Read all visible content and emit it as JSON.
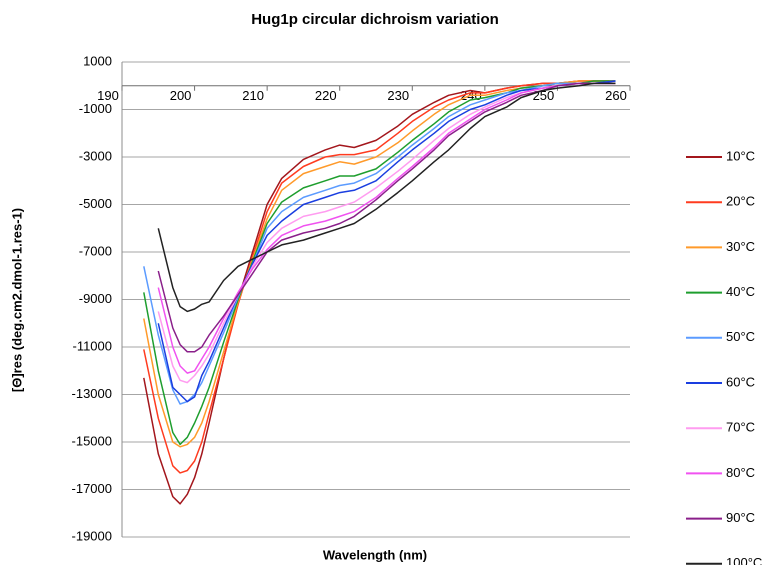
{
  "chart_data": {
    "type": "line",
    "title": "Hug1p circular dichroism variation",
    "xlabel": "Wavelength (nm)",
    "ylabel": "[Θ]res (deg.cm2.dmol-1.res-1)",
    "x": [
      193,
      195,
      197,
      198,
      199,
      200,
      201,
      202,
      204,
      206,
      208,
      210,
      212,
      215,
      218,
      220,
      222,
      225,
      228,
      230,
      233,
      235,
      238,
      240,
      243,
      245,
      248,
      250,
      253,
      255,
      258
    ],
    "xlim": [
      190,
      260
    ],
    "xticks": [
      190,
      200,
      210,
      220,
      230,
      240,
      250,
      260
    ],
    "ylim": [
      -19000,
      1000
    ],
    "yticks": [
      1000,
      -1000,
      -3000,
      -5000,
      -7000,
      -9000,
      -11000,
      -13000,
      -15000,
      -17000,
      -19000
    ],
    "grid": true,
    "legend": "right",
    "series": [
      {
        "name": "10°C",
        "color": "#a3161c",
        "values": [
          -12300,
          -15500,
          -17300,
          -17600,
          -17200,
          -16500,
          -15500,
          -14200,
          -11500,
          -9000,
          -7000,
          -5000,
          -3900,
          -3100,
          -2700,
          -2500,
          -2600,
          -2300,
          -1700,
          -1200,
          -700,
          -400,
          -200,
          -300,
          -100,
          0,
          100,
          100,
          200,
          200,
          200
        ]
      },
      {
        "name": "20°C",
        "color": "#ff3b1f",
        "values": [
          -11100,
          -14000,
          -16000,
          -16300,
          -16200,
          -15800,
          -15000,
          -13800,
          -11500,
          -9200,
          -7200,
          -5300,
          -4100,
          -3400,
          -3000,
          -2900,
          -2900,
          -2700,
          -2000,
          -1500,
          -900,
          -600,
          -300,
          -300,
          -100,
          0,
          100,
          100,
          200,
          200,
          200
        ]
      },
      {
        "name": "30°C",
        "color": "#ff9a2a",
        "values": [
          -9800,
          -13000,
          -15000,
          -15200,
          -15100,
          -14800,
          -14200,
          -13300,
          -11200,
          -9100,
          -7300,
          -5600,
          -4400,
          -3700,
          -3400,
          -3200,
          -3300,
          -3000,
          -2400,
          -1900,
          -1200,
          -800,
          -400,
          -400,
          -200,
          -100,
          0,
          100,
          200,
          200,
          200
        ]
      },
      {
        "name": "40°C",
        "color": "#1e9e2e",
        "values": [
          -8700,
          -12000,
          -14600,
          -15100,
          -14800,
          -14200,
          -13500,
          -12700,
          -10800,
          -9000,
          -7400,
          -5800,
          -4900,
          -4300,
          -4000,
          -3800,
          -3800,
          -3500,
          -2800,
          -2300,
          -1600,
          -1100,
          -600,
          -500,
          -300,
          -100,
          0,
          100,
          100,
          200,
          200
        ]
      },
      {
        "name": "50°C",
        "color": "#5b9bff",
        "values": [
          -7600,
          -10500,
          -12800,
          -13400,
          -13300,
          -13000,
          -12500,
          -11800,
          -10400,
          -8900,
          -7500,
          -6000,
          -5300,
          -4700,
          -4400,
          -4200,
          -4100,
          -3700,
          -3000,
          -2500,
          -1800,
          -1300,
          -800,
          -600,
          -300,
          -200,
          0,
          100,
          100,
          100,
          200
        ]
      },
      {
        "name": "60°C",
        "color": "#1a3ee0",
        "values": [
          null,
          -10000,
          -12700,
          -13000,
          -13300,
          -13100,
          -12200,
          -11600,
          -10200,
          -8800,
          -7500,
          -6300,
          -5700,
          -5000,
          -4700,
          -4500,
          -4400,
          -4000,
          -3200,
          -2700,
          -2000,
          -1500,
          -1000,
          -800,
          -400,
          -200,
          -100,
          0,
          100,
          100,
          200
        ]
      },
      {
        "name": "70°C",
        "color": "#ff9cf0",
        "values": [
          null,
          -9500,
          -11800,
          -12400,
          -12500,
          -12200,
          -11800,
          -11300,
          -10000,
          -8800,
          -7600,
          -6600,
          -6000,
          -5500,
          -5300,
          -5100,
          -4900,
          -4300,
          -3600,
          -3100,
          -2300,
          -1800,
          -1200,
          -900,
          -500,
          -300,
          -100,
          0,
          100,
          100,
          100
        ]
      },
      {
        "name": "80°C",
        "color": "#f052f0",
        "values": [
          null,
          -8500,
          -11000,
          -11800,
          -12100,
          -12000,
          -11500,
          -11000,
          -9800,
          -8700,
          -7700,
          -6900,
          -6300,
          -5900,
          -5700,
          -5500,
          -5300,
          -4700,
          -3900,
          -3400,
          -2600,
          -2000,
          -1400,
          -1000,
          -600,
          -300,
          -100,
          0,
          100,
          100,
          100
        ]
      },
      {
        "name": "90°C",
        "color": "#8a1f8a",
        "values": [
          null,
          -7800,
          -10200,
          -10900,
          -11200,
          -11200,
          -11000,
          -10500,
          -9700,
          -8800,
          -7900,
          -7000,
          -6500,
          -6200,
          -6000,
          -5800,
          -5500,
          -4800,
          -4000,
          -3500,
          -2700,
          -2100,
          -1500,
          -1100,
          -700,
          -400,
          -200,
          0,
          100,
          100,
          100
        ]
      },
      {
        "name": "100°C",
        "color": "#222222",
        "values": [
          null,
          -6000,
          -8500,
          -9300,
          -9500,
          -9400,
          -9200,
          -9100,
          -8200,
          -7600,
          -7300,
          -7000,
          -6700,
          -6500,
          -6200,
          -6000,
          -5800,
          -5200,
          -4500,
          -4000,
          -3200,
          -2700,
          -1800,
          -1300,
          -900,
          -500,
          -200,
          -100,
          0,
          100,
          100
        ]
      }
    ]
  }
}
